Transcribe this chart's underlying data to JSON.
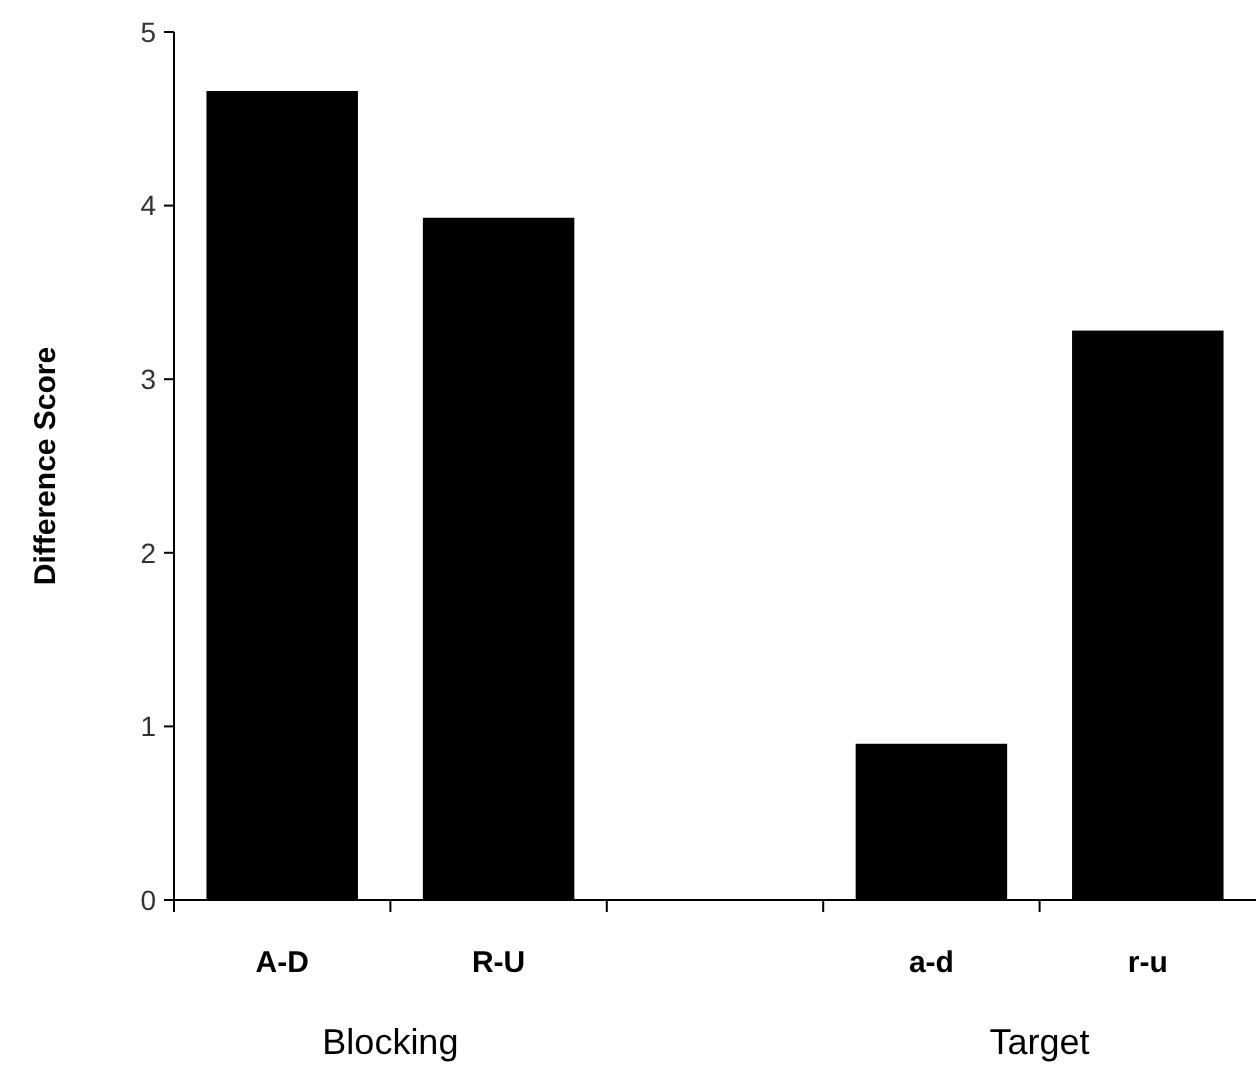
{
  "chart_data": {
    "type": "bar",
    "ylabel": "Difference Score",
    "categories": [
      "A-D",
      "R-U",
      null,
      "a-d",
      "r-u"
    ],
    "values": [
      4.66,
      3.93,
      null,
      0.9,
      3.28
    ],
    "color": "#000000",
    "ylim": [
      0,
      5
    ],
    "yticks": [
      0,
      1,
      2,
      3,
      4,
      5
    ],
    "grid": false,
    "annotations": [
      "Blocking",
      "Target"
    ]
  }
}
